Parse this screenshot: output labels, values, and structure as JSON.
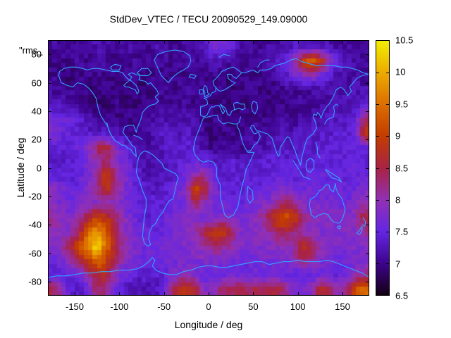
{
  "title": "StdDev_VTEC / TECU 20090529_149.09000",
  "overlay_label": "\"rms_",
  "axes": {
    "x": {
      "label": "Longitude / deg",
      "range": [
        -180,
        180
      ],
      "tick_values": [
        -150,
        -100,
        -50,
        0,
        50,
        100,
        150
      ],
      "tick_labels": [
        "-150",
        "-100",
        "-50",
        "0",
        "50",
        "100",
        "150"
      ]
    },
    "y": {
      "label": "Latitude / deg",
      "range": [
        -90,
        90
      ],
      "tick_values": [
        80,
        60,
        40,
        20,
        0,
        -20,
        -40,
        -60,
        -80
      ],
      "tick_labels": [
        "80",
        "60",
        "40",
        "20",
        "0",
        "-20",
        "-40",
        "-60",
        "-80"
      ]
    }
  },
  "colorbar": {
    "range": [
      6.5,
      10.5
    ],
    "tick_values": [
      6.5,
      7,
      7.5,
      8,
      8.5,
      9,
      9.5,
      10,
      10.5
    ],
    "tick_labels": [
      "6.5",
      "7",
      "7.5",
      "8",
      "8.5",
      "9",
      "9.5",
      "10",
      "10.5"
    ],
    "palette": [
      {
        "v": 6.5,
        "color": "#140013"
      },
      {
        "v": 7.0,
        "color": "#3e038e"
      },
      {
        "v": 7.5,
        "color": "#6426e2"
      },
      {
        "v": 8.0,
        "color": "#9230b4"
      },
      {
        "v": 8.5,
        "color": "#a92345"
      },
      {
        "v": 9.0,
        "color": "#c33c00"
      },
      {
        "v": 9.5,
        "color": "#dc6e00"
      },
      {
        "v": 10.0,
        "color": "#edaa00"
      },
      {
        "v": 10.5,
        "color": "#f2ee00"
      }
    ]
  },
  "map": {
    "coastline_color": "#35a0ff",
    "border_color": "#000000"
  },
  "chart_data": {
    "type": "heatmap",
    "title": "StdDev_VTEC / TECU 20090529_149.09000",
    "xlabel": "Longitude / deg",
    "ylabel": "Latitude / deg",
    "units": "TECU",
    "value_range": [
      6.5,
      10.5
    ],
    "lon_centers": [
      -175,
      -165,
      -155,
      -145,
      -135,
      -125,
      -115,
      -105,
      -95,
      -85,
      -75,
      -65,
      -55,
      -45,
      -35,
      -25,
      -15,
      -5,
      5,
      15,
      25,
      35,
      45,
      55,
      65,
      75,
      85,
      95,
      105,
      115,
      125,
      135,
      145,
      155,
      165,
      175
    ],
    "lat_centers": [
      85,
      75,
      65,
      55,
      45,
      35,
      25,
      15,
      5,
      -5,
      -15,
      -25,
      -35,
      -45,
      -55,
      -65,
      -75,
      -85
    ],
    "values": [
      [
        7.1,
        7.1,
        7.0,
        7.1,
        7.1,
        7.2,
        7.1,
        7.0,
        7.1,
        7.1,
        7.0,
        7.1,
        7.2,
        7.1,
        7.0,
        7.1,
        7.2,
        7.3,
        7.6,
        7.7,
        7.5,
        7.2,
        7.1,
        7.0,
        7.1,
        7.1,
        7.2,
        7.3,
        7.3,
        7.3,
        7.3,
        7.2,
        7.1,
        7.1,
        7.0,
        7.1
      ],
      [
        7.0,
        7.0,
        7.0,
        7.1,
        7.0,
        7.1,
        7.1,
        7.0,
        7.0,
        7.1,
        7.0,
        7.0,
        7.1,
        7.0,
        7.0,
        7.1,
        7.1,
        7.1,
        7.2,
        7.2,
        7.1,
        7.1,
        7.0,
        7.1,
        7.2,
        7.3,
        7.5,
        7.9,
        9.0,
        9.4,
        9.1,
        8.0,
        7.4,
        7.2,
        7.1,
        7.1
      ],
      [
        7.0,
        7.0,
        6.9,
        7.0,
        7.0,
        7.0,
        7.0,
        6.9,
        7.0,
        7.0,
        6.9,
        7.0,
        7.0,
        7.0,
        7.0,
        7.0,
        7.0,
        7.0,
        7.0,
        7.0,
        6.9,
        7.0,
        7.0,
        7.0,
        7.0,
        7.1,
        7.3,
        7.6,
        7.8,
        8.0,
        7.6,
        7.4,
        7.2,
        7.1,
        7.1,
        7.0
      ],
      [
        7.1,
        7.0,
        7.0,
        7.0,
        6.9,
        6.9,
        7.0,
        6.9,
        6.9,
        7.0,
        6.9,
        7.0,
        7.0,
        7.0,
        7.0,
        7.1,
        7.0,
        7.0,
        6.9,
        7.0,
        6.9,
        6.9,
        7.0,
        7.0,
        6.9,
        7.0,
        7.0,
        7.1,
        7.0,
        7.1,
        7.1,
        7.2,
        7.1,
        7.2,
        7.2,
        7.2
      ],
      [
        7.3,
        7.2,
        7.1,
        7.1,
        7.0,
        6.9,
        6.9,
        7.0,
        6.9,
        6.9,
        7.0,
        7.0,
        7.1,
        7.0,
        7.1,
        7.1,
        7.0,
        7.0,
        7.0,
        6.9,
        7.0,
        6.9,
        7.0,
        6.9,
        7.0,
        7.0,
        7.0,
        7.0,
        7.1,
        7.0,
        7.1,
        7.1,
        7.2,
        7.2,
        7.3,
        7.4
      ],
      [
        7.6,
        7.5,
        7.5,
        7.4,
        7.2,
        7.0,
        7.0,
        6.9,
        7.0,
        7.0,
        7.0,
        7.1,
        7.2,
        7.2,
        7.1,
        7.2,
        7.1,
        7.0,
        7.0,
        7.0,
        7.0,
        6.9,
        7.0,
        7.0,
        7.0,
        7.0,
        7.1,
        7.0,
        7.1,
        7.2,
        7.2,
        7.3,
        7.3,
        7.3,
        7.5,
        8.3
      ],
      [
        7.8,
        7.6,
        7.5,
        7.4,
        7.3,
        7.3,
        7.3,
        7.2,
        7.1,
        7.0,
        7.0,
        7.1,
        7.3,
        7.3,
        7.2,
        7.3,
        7.2,
        7.0,
        6.9,
        7.0,
        7.0,
        7.0,
        7.1,
        7.1,
        7.1,
        7.2,
        7.2,
        7.2,
        7.3,
        7.3,
        7.3,
        7.3,
        7.4,
        7.4,
        7.6,
        9.0
      ],
      [
        7.4,
        7.4,
        7.5,
        7.6,
        7.9,
        8.4,
        8.6,
        7.9,
        7.5,
        7.3,
        7.2,
        7.1,
        7.2,
        7.4,
        7.3,
        7.4,
        7.4,
        7.1,
        7.0,
        7.0,
        7.0,
        7.0,
        7.1,
        7.2,
        7.2,
        7.3,
        7.3,
        7.3,
        7.4,
        7.3,
        7.4,
        7.4,
        7.4,
        7.5,
        7.5,
        7.6
      ],
      [
        7.3,
        7.3,
        7.4,
        7.5,
        7.7,
        8.1,
        8.3,
        7.9,
        7.6,
        7.4,
        7.2,
        7.1,
        7.2,
        7.3,
        7.4,
        7.5,
        7.5,
        7.5,
        7.3,
        7.2,
        7.4,
        7.3,
        7.3,
        7.3,
        7.4,
        7.4,
        7.4,
        7.4,
        7.4,
        7.4,
        7.5,
        7.4,
        7.4,
        7.5,
        7.5,
        7.4
      ],
      [
        7.4,
        7.4,
        7.4,
        7.5,
        7.7,
        8.0,
        9.0,
        8.3,
        7.8,
        7.5,
        7.3,
        7.2,
        7.2,
        7.3,
        7.4,
        7.6,
        8.0,
        8.2,
        7.6,
        7.4,
        7.4,
        7.4,
        7.4,
        7.4,
        7.5,
        7.5,
        7.5,
        7.4,
        7.5,
        7.5,
        7.6,
        7.5,
        7.5,
        7.5,
        7.5,
        7.5
      ],
      [
        7.9,
        7.7,
        7.5,
        7.6,
        7.8,
        8.2,
        8.8,
        8.3,
        7.8,
        7.5,
        7.4,
        7.3,
        7.3,
        7.4,
        7.6,
        7.8,
        9.2,
        8.6,
        7.8,
        7.5,
        7.4,
        7.4,
        7.5,
        7.5,
        7.6,
        7.7,
        7.8,
        7.7,
        7.6,
        7.6,
        7.6,
        7.6,
        7.6,
        7.5,
        7.6,
        7.8
      ],
      [
        7.9,
        7.7,
        7.6,
        7.7,
        7.8,
        7.9,
        8.0,
        7.9,
        7.7,
        7.5,
        7.4,
        7.4,
        7.4,
        7.5,
        7.6,
        7.8,
        8.3,
        8.0,
        7.7,
        7.6,
        7.5,
        7.5,
        7.6,
        7.7,
        7.8,
        8.0,
        8.4,
        8.2,
        7.9,
        7.7,
        7.7,
        7.7,
        7.7,
        7.6,
        7.8,
        8.0
      ],
      [
        8.2,
        7.9,
        7.8,
        8.0,
        8.6,
        9.0,
        8.8,
        8.4,
        7.9,
        7.6,
        7.5,
        7.4,
        7.5,
        7.6,
        7.7,
        7.8,
        7.9,
        7.7,
        7.7,
        7.7,
        7.7,
        7.7,
        7.8,
        8.0,
        8.3,
        9.0,
        9.3,
        9.0,
        8.3,
        7.9,
        7.8,
        7.8,
        7.8,
        7.7,
        8.0,
        8.6
      ],
      [
        8.0,
        7.8,
        7.9,
        8.4,
        9.4,
        9.8,
        9.3,
        8.5,
        8.0,
        7.7,
        7.6,
        7.5,
        7.5,
        7.6,
        7.7,
        7.8,
        8.0,
        8.5,
        8.9,
        9.0,
        8.5,
        7.9,
        7.8,
        7.9,
        8.0,
        8.4,
        8.5,
        8.2,
        8.0,
        7.9,
        7.8,
        7.8,
        7.8,
        7.8,
        7.9,
        8.1
      ],
      [
        7.8,
        8.0,
        8.6,
        9.2,
        9.8,
        10.4,
        9.4,
        8.6,
        8.0,
        7.8,
        7.6,
        7.6,
        7.6,
        7.7,
        7.7,
        7.8,
        7.9,
        8.1,
        8.3,
        8.2,
        8.0,
        7.8,
        7.7,
        7.8,
        7.8,
        7.9,
        7.9,
        8.0,
        8.8,
        8.5,
        7.9,
        7.8,
        7.8,
        7.7,
        7.8,
        7.8
      ],
      [
        7.6,
        7.7,
        8.0,
        8.5,
        9.0,
        9.5,
        9.0,
        8.4,
        7.9,
        7.7,
        7.6,
        7.6,
        7.6,
        7.6,
        7.7,
        7.7,
        7.7,
        7.8,
        7.8,
        7.7,
        7.7,
        7.6,
        7.6,
        7.7,
        7.7,
        7.7,
        7.8,
        7.9,
        8.4,
        8.2,
        7.8,
        7.7,
        7.6,
        7.6,
        7.7,
        7.7
      ],
      [
        7.4,
        7.4,
        7.5,
        7.7,
        8.1,
        8.6,
        8.8,
        8.0,
        7.6,
        7.5,
        7.4,
        7.4,
        7.4,
        7.6,
        7.8,
        7.9,
        7.7,
        7.5,
        7.5,
        7.6,
        7.6,
        7.6,
        7.6,
        7.6,
        7.6,
        7.6,
        7.5,
        7.5,
        7.5,
        7.5,
        7.5,
        7.5,
        7.5,
        7.6,
        8.0,
        8.2
      ],
      [
        8.5,
        8.0,
        7.4,
        7.3,
        7.6,
        8.4,
        8.2,
        7.6,
        7.3,
        7.2,
        7.2,
        7.2,
        7.3,
        7.8,
        8.8,
        9.0,
        8.6,
        7.8,
        7.9,
        8.3,
        8.4,
        8.5,
        8.4,
        8.5,
        8.4,
        8.6,
        8.3,
        7.8,
        7.7,
        7.9,
        8.6,
        8.5,
        7.9,
        8.2,
        9.2,
        9.4
      ]
    ]
  }
}
